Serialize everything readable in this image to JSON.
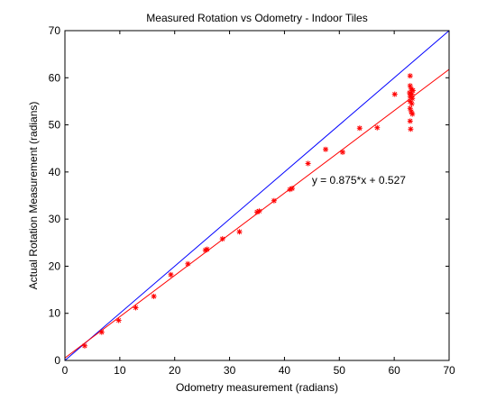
{
  "chart_data": {
    "type": "scatter",
    "title": "Measured Rotation vs Odometry - Indoor Tiles",
    "xlabel": "Odometry measurement (radians)",
    "ylabel": "Actual Rotation Measurement (radians)",
    "xlim": [
      0,
      70
    ],
    "ylim": [
      0,
      70
    ],
    "xticks": [
      "0",
      "10",
      "20",
      "30",
      "40",
      "50",
      "60",
      "70"
    ],
    "yticks": [
      "0",
      "10",
      "20",
      "30",
      "40",
      "50",
      "60",
      "70"
    ],
    "grid": false,
    "annotation": "y = 0.875*x + 0.527",
    "annotation_at": [
      45,
      37.5
    ],
    "series": [
      {
        "marker": "asterisk",
        "color": "#ff0000",
        "points": [
          [
            3.6,
            3.1
          ],
          [
            6.7,
            6.0
          ],
          [
            9.8,
            8.5
          ],
          [
            12.9,
            11.2
          ],
          [
            16.2,
            13.6
          ],
          [
            19.3,
            18.2
          ],
          [
            22.4,
            20.5
          ],
          [
            25.6,
            23.4
          ],
          [
            25.9,
            23.6
          ],
          [
            28.7,
            25.8
          ],
          [
            31.8,
            27.3
          ],
          [
            35.0,
            31.5
          ],
          [
            35.4,
            31.7
          ],
          [
            38.1,
            33.9
          ],
          [
            41.0,
            36.3
          ],
          [
            41.4,
            36.5
          ],
          [
            44.3,
            41.8
          ],
          [
            47.5,
            44.8
          ],
          [
            50.6,
            44.2
          ],
          [
            53.7,
            49.3
          ],
          [
            56.9,
            49.4
          ],
          [
            60.1,
            56.5
          ],
          [
            62.9,
            60.4
          ],
          [
            62.9,
            58.3
          ],
          [
            63.1,
            57.6
          ],
          [
            63.4,
            57.3
          ],
          [
            62.8,
            56.8
          ],
          [
            63.2,
            56.5
          ],
          [
            62.9,
            56.0
          ],
          [
            63.3,
            55.6
          ],
          [
            62.9,
            55.0
          ],
          [
            63.2,
            54.5
          ],
          [
            62.9,
            53.5
          ],
          [
            63.1,
            52.8
          ],
          [
            63.3,
            52.3
          ],
          [
            62.9,
            50.8
          ],
          [
            63.0,
            49.1
          ]
        ]
      }
    ],
    "lines": [
      {
        "color": "#0000ff",
        "slope": 1,
        "intercept": 0
      },
      {
        "color": "#ff0000",
        "slope": 0.875,
        "intercept": 0.527
      }
    ]
  }
}
